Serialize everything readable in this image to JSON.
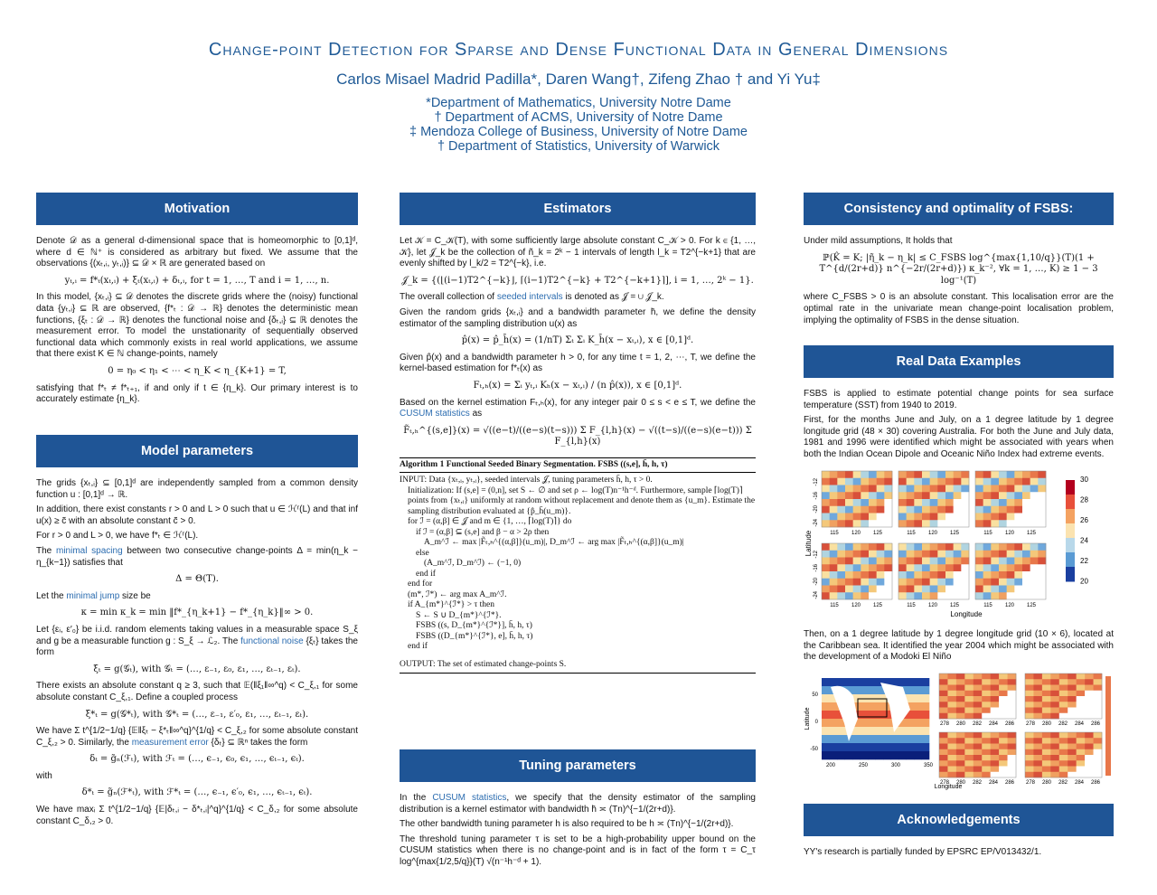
{
  "header": {
    "title": "Change-point Detection for Sparse and Dense Functional Data in General Dimensions",
    "authors": "Carlos Misael Madrid Padilla*, Daren Wang†, Zifeng Zhao † and Yi Yu‡",
    "affiliations": [
      "*Department of Mathematics, University Notre Dame",
      "† Department of ACMS, University of Notre Dame",
      "‡ Mendoza College of Business, University of Notre Dame",
      "† Department of Statistics, University of Warwick"
    ]
  },
  "columns": [
    [
      {
        "heading": "Motivation",
        "items": [
          "Denote 𝒟 as a general d-dimensional space that is homeomorphic to [0,1]ᵈ, where d ∈ ℕ⁺ is considered as arbitrary but fixed. We assume that the observations {(xₜ,ᵢ, yₜ,ᵢ)} ⊆ 𝒟 × ℝ are generated based on",
          {
            "equation": "yₜ,ᵢ = f*ₜ(xₜ,ᵢ) + ξₜ(xₜ,ᵢ) + δₜ,ᵢ,  for t = 1, …, T and i = 1, …, n."
          },
          "In this model, {xₜ,ᵢ} ⊆ 𝒟 denotes the discrete grids where the (noisy) functional data {yₜ,ᵢ} ⊆ ℝ are observed, {f*ₜ : 𝒟 → ℝ} denotes the deterministic mean functions, {ξₜ : 𝒟 → ℝ} denotes the functional noise and {δₜ,ᵢ} ⊆ ℝ denotes the measurement error. To model the unstationarity of sequentially observed functional data which commonly exists in real world applications, we assume that there exist K ∈ ℕ change-points, namely",
          {
            "equation": "0 = η₀ < η₁ < ⋯ < η_K < η_{K+1} = T,"
          },
          "satisfying that f*ₜ ≠ f*ₜ₊₁, if and only if t ∈ {η_k}. Our primary interest is to accurately estimate {η_k}."
        ]
      },
      {
        "heading": "Model parameters",
        "items": [
          "The grids {xₜ,ᵢ} ⊆ [0,1]ᵈ are independently sampled from a common density function u : [0,1]ᵈ → ℝ.",
          "In addition, there exist constants r > 0 and L > 0 such that u ∈ ℋʳ(L) and that inf u(x) ≥ c̃ with an absolute constant c̃ > 0.",
          "For r > 0 and L > 0, we have f*ₜ ∈ ℋʳ(L).",
          [
            "The ",
            "minimal spacing",
            " between two consecutive change-points Δ = min(η_k − η_{k−1}) satisfies that"
          ],
          {
            "equation": "Δ = Θ(T)."
          },
          [
            "Let the ",
            "minimal jump",
            " size be"
          ],
          {
            "equation": "κ = min κ_k = min ‖f*_{η_k+1} − f*_{η_k}‖∞ > 0."
          },
          [
            "Let {εᵢ, ε′₀} be i.i.d. random elements taking values in a measurable space S_ξ and g be a measurable function g : S_ξ → ℒ₂. The ",
            "functional noise",
            " {ξₜ} takes the form"
          ],
          {
            "equation": "ξₜ = g(𝒢ₜ),   with 𝒢ₜ = (…, ε₋₁, ε₀, ε₁, …, εₜ₋₁, εₜ)."
          },
          "There exists an absolute constant q ≥ 3, such that 𝔼(‖ξ₁‖∞^q) < C_ξ,₁ for some absolute constant C_ξ,₁. Define a coupled process",
          {
            "equation": "ξ*ₜ = g(𝒢*ₜ),   with 𝒢*ₜ = (…, ε₋₁, ε′₀, ε₁, …, εₜ₋₁, εₜ)."
          },
          [
            "We have Σ t^{1/2−1/q} {𝔼‖ξₜ − ξ*ₜ‖∞^q}^{1/q} < C_ξ,₂ for some absolute constant C_ξ,₂ > 0. Similarly, the ",
            "measurement error",
            " {δₜ} ⊆ ℝⁿ takes the form"
          ],
          {
            "equation": "δₜ = g̃ₙ(ℱₜ),   with ℱₜ = (…, ϵ₋₁, ϵ₀, ϵ₁, …, ϵₜ₋₁, ϵₜ)."
          },
          "with",
          {
            "equation": "δ*ₜ = g̃ₙ(ℱ*ₜ),   with ℱ*ₜ = (…, ϵ₋₁, ϵ′₀, ϵ₁, …, ϵₜ₋₁, ϵₜ)."
          },
          "We have maxᵢ Σ t^{1/2−1/q} {𝔼|δₜ,ᵢ − δ*ₜ,ᵢ|^q}^{1/q} < C_δ,₂ for some absolute constant C_δ,₂ > 0."
        ]
      }
    ],
    [
      {
        "heading": "Estimators",
        "items": [
          "Let 𝒦 = C_𝒦(T), with some sufficiently large absolute constant C_𝒦 > 0. For k ∈ {1, …, 𝒦}, let 𝒥_k be the collection of ñ_k = 2ᵏ − 1 intervals of length l_k = T2^{−k+1} that are evenly shifted by l_k/2 = T2^{−k}, i.e.",
          {
            "equation": "𝒥_k = {(⌊(i−1)T2^{−k}⌋, ⌈(i−1)T2^{−k} + T2^{−k+1}⌉],   i = 1, …, 2ᵏ − 1}."
          },
          [
            "The overall collection of ",
            "seeded intervals",
            " is denoted as 𝒥 = ∪ 𝒥_k."
          ],
          "Given the random grids {xₜ,ᵢ} and a bandwidth parameter h̄, we define the density estimator of the sampling distribution u(x) as",
          {
            "equation": "p̂(x) = p̂_h̄(x) = (1/nT) Σₜ Σᵢ K_h̄(x − xₜ,ᵢ),   x ∈ [0,1]ᵈ."
          },
          "Given p̂(x) and a bandwidth parameter h > 0, for any time t = 1, 2, ⋯, T, we define the kernel-based estimation for f*ₜ(x) as",
          {
            "equation": "Fₜ,ₕ(x) = Σᵢ yₜ,ᵢ Kₕ(x − xₜ,ᵢ) / (n p̂(x)),   x ∈ [0,1]ᵈ."
          },
          [
            "Based on the kernel estimation Fₜ,ₕ(x), for any integer pair 0 ≤ s < e ≤ T, we define the ",
            "CUSUM statistics",
            " as"
          ],
          {
            "equation": "F̃ₜ,ₕ^{(s,e]}(x) = √((e−t)/((e−s)(t−s))) Σ F_{l,h}(x) − √((t−s)/((e−s)(e−t))) Σ F_{l,h}(x)"
          },
          {
            "algorithm": {
              "title": "Algorithm 1 Functional Seeded Binary Segmentation. FSBS ((s,e], h̄, h, τ)",
              "lines": [
                "INPUT: Data {xₜ,ᵢ, yₜ,ᵢ}, seeded intervals 𝒥, tuning parameters h̄, h, τ > 0.",
                "Initialization: If (s,e] = (0,n], set S ← ∅ and set ρ ← log(T)n⁻¹h⁻ᵈ. Furthermore, sample ⌈log(T)⌉ points from {xₜ,ᵢ} uniformly at random without replacement and denote them as {u_m}. Estimate the sampling distribution evaluated at {p̂_h̄(u_m)}.",
                "for ℐ = (α,β] ∈ 𝒥 and m ∈ {1, …, ⌈log(T)⌉} do",
                "if ℐ = (α,β] ⊆ (s,e] and β − α > 2ρ then",
                "A_m^ℐ ← max |F̃ₜ,ₕ^{(α,β]}(u_m)|, D_m^ℐ ← arg max |F̃ₜ,ₕ^{(α,β]}(u_m)|",
                "else",
                "(A_m^ℐ, D_m^ℐ) ← (−1, 0)",
                "end if",
                "end for",
                "(m*, ℐ*) ← arg max A_m^ℐ.",
                "if A_{m*}^{ℐ*} > τ then",
                "S ← S ∪ D_{m*}^{ℐ*}.",
                "FSBS ((s, D_{m*}^{ℐ*}], h̄, h, τ)",
                "FSBS ((D_{m*}^{ℐ*}, e], h̄, h, τ)",
                "end if"
              ],
              "output": "OUTPUT: The set of estimated change-points S."
            }
          }
        ]
      },
      {
        "heading": "Tuning parameters",
        "items": [
          [
            "In the ",
            "CUSUM statistics",
            ", we specify that the density estimator of the sampling distribution is a kernel estimator with bandwidth h̄ ≍ (Tn)^{−1/(2r+d)}."
          ],
          "The other bandwidth tuning parameter h is also required to be h ≍ (Tn)^{−1/(2r+d)}.",
          "The threshold tuning parameter τ is set to be a high-probability upper bound on the CUSUM statistics when there is no change-point and is in fact of the form τ = C_τ log^{max{1/2,5/q}}(T) √(n⁻¹h⁻ᵈ + 1)."
        ]
      }
    ],
    [
      {
        "heading": "Consistency and optimality of FSBS:",
        "items": [
          "Under mild assumptions, It holds that",
          {
            "equation": "ℙ(K̂ = K; |η̃_k − η_k| ≤ C_FSBS log^{max{1,10/q}}(T)(1 + T^{d/(2r+d)} n^{−2r/(2r+d)}) κ_k⁻²,  ∀k = 1, …, K) ≥ 1 − 3 log⁻¹(T)"
          },
          "where C_FSBS > 0 is an absolute constant. This localisation error are the optimal rate in the univariate mean change-point localisation problem, implying the optimality of FSBS in the dense situation."
        ]
      },
      {
        "heading": "Real Data Examples",
        "items": [
          "FSBS is applied to estimate potential change points for sea surface temperature (SST) from 1940 to 2019.",
          "First, for the months June and July, on a 1 degree latitude by 1 degree longitude grid (48 × 30) covering Australia. For both the June and July data, 1981 and 1996 were identified which might be associated with years when both the Indian Ocean Dipole and Oceanic Niño Index had extreme events.",
          {
            "figure": {
              "y_label": "Latitude",
              "x_label": "Longitude",
              "x_ticks": [
                "115",
                "120",
                "125"
              ],
              "y_ticks": [
                "-12",
                "-16",
                "-20",
                "-24"
              ],
              "colorbar_ticks": [
                "30",
                "28",
                "26",
                "24",
                "22",
                "20"
              ]
            }
          },
          "Then, on a 1 degree latitude by 1 degree longitude grid (10 × 6), located at the Caribbean sea. It identified the year 2004 which might be associated with the development of a Modoki El Niño",
          {
            "figure": {
              "y_label": "Latitude",
              "x_label": "Longitude",
              "x_ticks": [
                "200",
                "250",
                "300",
                "350"
              ],
              "y_ticks": [
                "50",
                "0",
                "-50"
              ],
              "panel_ticks": [
                "278",
                "280",
                "282",
                "284",
                "286"
              ]
            }
          }
        ]
      },
      {
        "heading": "Acknowledgements",
        "items": [
          "YY's research is partially funded by EPSRC EP/V013432/1."
        ]
      }
    ]
  ]
}
